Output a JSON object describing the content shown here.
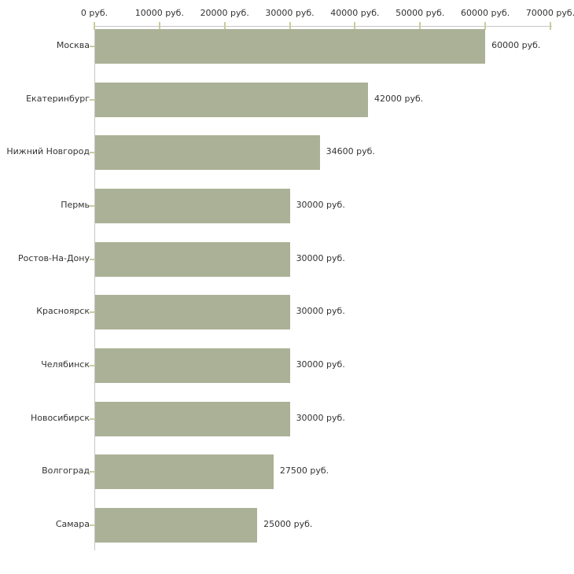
{
  "chart_data": {
    "type": "bar",
    "orientation": "horizontal",
    "title": "",
    "xlabel": "",
    "ylabel": "",
    "unit": "руб.",
    "categories": [
      "Москва",
      "Екатеринбург",
      "Нижний Новгород",
      "Пермь",
      "Ростов-На-Дону",
      "Красноярск",
      "Челябинск",
      "Новосибирск",
      "Волгоград",
      "Самара"
    ],
    "values": [
      60000,
      42000,
      34600,
      30000,
      30000,
      30000,
      30000,
      30000,
      27500,
      25000
    ],
    "value_labels": [
      "60000 руб.",
      "42000 руб.",
      "34600 руб.",
      "30000 руб.",
      "30000 руб.",
      "30000 руб.",
      "30000 руб.",
      "30000 руб.",
      "27500 руб.",
      "25000 руб."
    ],
    "x_axis": {
      "position": "top",
      "range": [
        0,
        70000
      ],
      "ticks": [
        0,
        10000,
        20000,
        30000,
        40000,
        50000,
        60000,
        70000
      ],
      "tick_labels": [
        "0 руб.",
        "10000 руб.",
        "20000 руб.",
        "30000 руб.",
        "40000 руб.",
        "50000 руб.",
        "60000 руб.",
        "70000 руб."
      ]
    },
    "grid": false,
    "legend": false,
    "colors": {
      "bar": "#abb196",
      "axis_line": "#c6c6c6",
      "tick_mark": "#cbcb9b",
      "text": "#333333",
      "background": "#ffffff"
    }
  }
}
